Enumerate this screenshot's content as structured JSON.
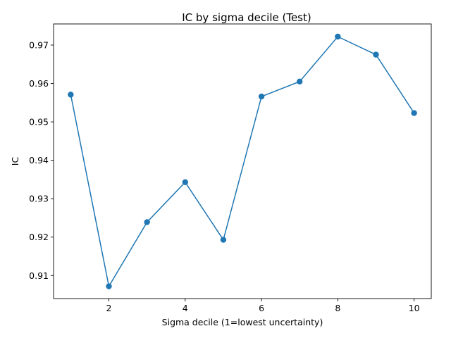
{
  "chart_data": {
    "type": "line",
    "title": "IC by sigma decile (Test)",
    "xlabel": "Sigma decile (1=lowest uncertainty)",
    "ylabel": "IC",
    "x": [
      1,
      2,
      3,
      4,
      5,
      6,
      7,
      8,
      9,
      10
    ],
    "series": [
      {
        "values": [
          0.9571,
          0.9072,
          0.9239,
          0.9343,
          0.9193,
          0.9566,
          0.9605,
          0.9722,
          0.9675,
          0.9523
        ],
        "color": "#1f77b4",
        "marker": "circle"
      }
    ],
    "xlim": [
      0.55,
      10.45
    ],
    "ylim": [
      0.904,
      0.9755
    ],
    "xticks": [
      2,
      4,
      6,
      8,
      10
    ],
    "xtick_labels": [
      "2",
      "4",
      "6",
      "8",
      "10"
    ],
    "yticks": [
      0.91,
      0.92,
      0.93,
      0.94,
      0.95,
      0.96,
      0.97
    ],
    "ytick_labels": [
      "0.91",
      "0.92",
      "0.93",
      "0.94",
      "0.95",
      "0.96",
      "0.97"
    ],
    "grid": false,
    "legend": false
  }
}
